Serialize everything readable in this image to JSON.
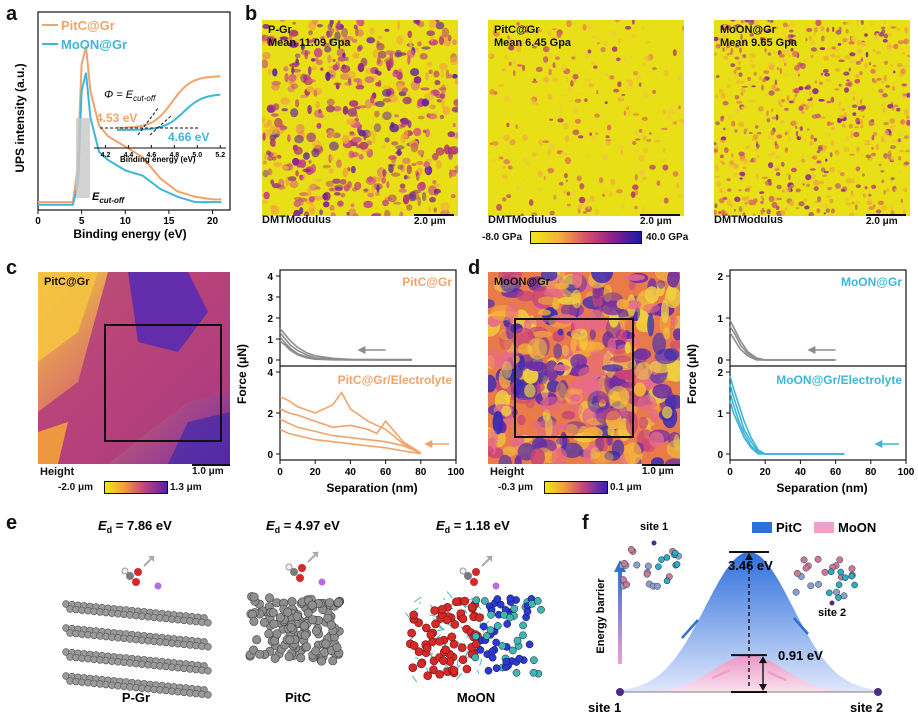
{
  "panel_labels": {
    "a": "a",
    "b": "b",
    "c": "c",
    "d": "d",
    "e": "e",
    "f": "f"
  },
  "colors": {
    "pitc": "#f2a36a",
    "moon": "#3fb6d8",
    "gray": "#888888",
    "map_yellow": "#e8df16",
    "map_purple": "#8a1f8f",
    "barrier_blue": "#2f6fdc",
    "barrier_pink": "#ef9fc8"
  },
  "panel_a": {
    "legend": [
      "PitC@Gr",
      "MoON@Gr"
    ],
    "ylabel": "UPS intensity (a.u.)",
    "xlabel": "Binding energy (eV)",
    "xticks": [
      "0",
      "5",
      "10",
      "15",
      "20"
    ],
    "phi_label": "Φ = E",
    "phi_sub": "cut-off",
    "val_pitc": "4.53 eV",
    "val_moon": "4.66 eV",
    "ecut_label": "E",
    "ecut_sub": "cut-off",
    "inset_xticks": [
      "4.2",
      "4.4",
      "4.6",
      "4.8",
      "5.0",
      "5.2"
    ],
    "inset_xlabel": "Binding energy (eV)"
  },
  "chart_data": [
    {
      "type": "line",
      "title": "",
      "xlabel": "Binding energy (eV)",
      "ylabel": "UPS intensity (a.u.)",
      "xlim": [
        0,
        22
      ],
      "series": [
        {
          "name": "PitC@Gr",
          "x": [
            0,
            3,
            4.0,
            4.5,
            5.0,
            5.5,
            6,
            7,
            8,
            10,
            12,
            14,
            16,
            18,
            20,
            21
          ],
          "y": [
            0.03,
            0.03,
            0.03,
            0.15,
            0.55,
            0.62,
            0.45,
            0.32,
            0.28,
            0.24,
            0.2,
            0.12,
            0.07,
            0.05,
            0.04,
            0.04
          ]
        },
        {
          "name": "MoON@Gr",
          "x": [
            0,
            3,
            4.0,
            4.6,
            5.0,
            5.5,
            6,
            7,
            8,
            10,
            12,
            14,
            16,
            18,
            20,
            21
          ],
          "y": [
            0.02,
            0.02,
            0.02,
            0.1,
            0.45,
            0.52,
            0.35,
            0.22,
            0.19,
            0.15,
            0.13,
            0.08,
            0.05,
            0.03,
            0.03,
            0.03
          ]
        }
      ]
    },
    {
      "type": "line",
      "title": "PitC@Gr",
      "xlabel": "Separation (nm)",
      "ylabel": "Force (μN)",
      "xlim": [
        0,
        100
      ],
      "top": {
        "label": "PitC@Gr",
        "ylim": [
          0,
          4
        ],
        "yticks": [
          0,
          1,
          2,
          3,
          4
        ],
        "series": [
          {
            "x": [
              0,
              3,
              6,
              10,
              15,
              20,
              30,
              40,
              60,
              75
            ],
            "y": [
              1.5,
              1.2,
              0.9,
              0.6,
              0.35,
              0.2,
              0.08,
              0.03,
              0.02,
              0.02
            ]
          },
          {
            "x": [
              0,
              3,
              6,
              10,
              15,
              20,
              30,
              40,
              60,
              75
            ],
            "y": [
              1.3,
              1.0,
              0.7,
              0.45,
              0.25,
              0.1,
              0.05,
              0.02,
              0.01,
              0.01
            ]
          },
          {
            "x": [
              0,
              3,
              6,
              10,
              15,
              20,
              30,
              40,
              60,
              75
            ],
            "y": [
              1.1,
              0.8,
              0.55,
              0.3,
              0.15,
              0.06,
              0.02,
              0.01,
              0.0,
              0.0
            ]
          },
          {
            "x": [
              0,
              3,
              6,
              10,
              15,
              20,
              30,
              40,
              60,
              75
            ],
            "y": [
              0.9,
              0.7,
              0.45,
              0.25,
              0.1,
              0.04,
              0.01,
              0.0,
              0.0,
              0.0
            ]
          }
        ]
      },
      "bottom": {
        "label": "PitC@Gr/Electrolyte",
        "ylim": [
          0,
          4
        ],
        "yticks": [
          0,
          2,
          4
        ],
        "series": [
          {
            "x": [
              0,
              5,
              10,
              20,
              30,
              35,
              40,
              50,
              60,
              70,
              80
            ],
            "y": [
              2.8,
              2.6,
              2.3,
              2.0,
              2.4,
              3.0,
              2.2,
              1.6,
              1.2,
              0.5,
              0.05
            ]
          },
          {
            "x": [
              0,
              5,
              10,
              20,
              30,
              40,
              50,
              55,
              60,
              70,
              80
            ],
            "y": [
              2.2,
              2.0,
              1.9,
              1.6,
              1.3,
              1.4,
              1.2,
              1.0,
              1.6,
              0.6,
              0.05
            ]
          },
          {
            "x": [
              0,
              5,
              10,
              20,
              30,
              40,
              50,
              60,
              70,
              80
            ],
            "y": [
              1.7,
              1.5,
              1.3,
              1.1,
              0.9,
              0.8,
              0.7,
              0.6,
              0.4,
              0.05
            ]
          },
          {
            "x": [
              0,
              5,
              10,
              20,
              30,
              40,
              50,
              60,
              70,
              80
            ],
            "y": [
              1.2,
              1.0,
              0.9,
              0.7,
              0.6,
              0.5,
              0.4,
              0.3,
              0.15,
              0.02
            ]
          }
        ]
      },
      "arrow_label": ""
    },
    {
      "type": "line",
      "title": "MoON@Gr",
      "xlabel": "Separation (nm)",
      "ylabel": "Force (μN)",
      "xlim": [
        0,
        100
      ],
      "top": {
        "label": "MoON@Gr",
        "ylim": [
          0,
          2
        ],
        "yticks": [
          0,
          1,
          2
        ],
        "series": [
          {
            "x": [
              0,
              3,
              6,
              10,
              15,
              20,
              30,
              45,
              60
            ],
            "y": [
              0.95,
              0.7,
              0.45,
              0.2,
              0.05,
              0.0,
              0.0,
              0.0,
              0.0
            ]
          },
          {
            "x": [
              0,
              3,
              6,
              10,
              15,
              20,
              30,
              45,
              60
            ],
            "y": [
              0.8,
              0.6,
              0.35,
              0.15,
              0.02,
              0.0,
              0.0,
              0.0,
              0.0
            ]
          },
          {
            "x": [
              0,
              3,
              6,
              10,
              15,
              20,
              30,
              45,
              60
            ],
            "y": [
              0.65,
              0.45,
              0.25,
              0.1,
              0.0,
              0.0,
              0.0,
              0.0,
              0.0
            ]
          }
        ]
      },
      "bottom": {
        "label": "MoON@Gr/Electrolyte",
        "ylim": [
          0,
          2
        ],
        "yticks": [
          0,
          1,
          2
        ],
        "series": [
          {
            "x": [
              0,
              2,
              5,
              8,
              12,
              16,
              20,
              40,
              65
            ],
            "y": [
              1.9,
              1.6,
              1.2,
              0.8,
              0.4,
              0.1,
              0.0,
              0.0,
              0.0
            ]
          },
          {
            "x": [
              0,
              2,
              5,
              8,
              12,
              16,
              20,
              40,
              65
            ],
            "y": [
              1.7,
              1.4,
              1.0,
              0.6,
              0.3,
              0.05,
              0.0,
              0.0,
              0.0
            ]
          },
          {
            "x": [
              0,
              2,
              5,
              8,
              12,
              16,
              20,
              40,
              65
            ],
            "y": [
              1.5,
              1.2,
              0.8,
              0.5,
              0.2,
              0.02,
              0.0,
              0.0,
              0.0
            ]
          },
          {
            "x": [
              0,
              2,
              5,
              8,
              12,
              16,
              20,
              40,
              65
            ],
            "y": [
              1.3,
              1.0,
              0.7,
              0.4,
              0.15,
              0.0,
              0.0,
              0.0,
              0.0
            ]
          }
        ]
      }
    },
    {
      "type": "area",
      "title": "Energy barrier",
      "ylabel": "Energy barrier",
      "xlabel": "",
      "categories": [
        "site 1",
        "site 2"
      ],
      "series": [
        {
          "name": "PitC",
          "peak": 3.46
        },
        {
          "name": "MoON",
          "peak": 0.91
        }
      ]
    }
  ],
  "panel_b": {
    "maps": [
      {
        "name": "P-Gr",
        "mean": "Mean 11.09 Gpa",
        "caption": "DMTModulus",
        "scale": "2.0 μm"
      },
      {
        "name": "PitC@Gr",
        "mean": "Mean 6.45 Gpa",
        "caption": "DMTModulus",
        "scale": "2.0 μm"
      },
      {
        "name": "MoON@Gr",
        "mean": "Mean 9.65 Gpa",
        "caption": "DMTModulus",
        "scale": "2.0 μm"
      }
    ],
    "colorbar_min": "-8.0 GPa",
    "colorbar_max": "40.0 GPa"
  },
  "panel_c": {
    "map_name": "PitC@Gr",
    "caption": "Height",
    "scale": "1.0 μm",
    "cb_min": "-2.0 μm",
    "cb_max": "1.3 μm",
    "top_label": "PitC@Gr",
    "bottom_label": "PitC@Gr/Electrolyte",
    "ylabel": "Force (μN)",
    "xlabel": "Separation (nm)",
    "top_yticks": [
      "0",
      "1",
      "2",
      "3",
      "4"
    ],
    "bottom_yticks": [
      "0",
      "2",
      "4"
    ],
    "xticks": [
      "0",
      "20",
      "40",
      "60",
      "80",
      "100"
    ]
  },
  "panel_d": {
    "map_name": "MoON@Gr",
    "caption": "Height",
    "scale": "1.0 μm",
    "cb_min": "-0.3 μm",
    "cb_max": "0.1 μm",
    "top_label": "MoON@Gr",
    "bottom_label": "MoON@Gr/Electrolyte",
    "ylabel": "Force (μN)",
    "xlabel": "Separation (nm)",
    "top_yticks": [
      "0",
      "1",
      "2"
    ],
    "bottom_yticks": [
      "0",
      "1",
      "2"
    ],
    "xticks": [
      "0",
      "20",
      "40",
      "60",
      "80",
      "100"
    ]
  },
  "panel_e": {
    "items": [
      {
        "ed": "E",
        "sub": "d",
        "value": " = 7.86 eV",
        "name": "P-Gr"
      },
      {
        "ed": "E",
        "sub": "d",
        "value": " = 4.97 eV",
        "name": "PitC"
      },
      {
        "ed": "E",
        "sub": "d",
        "value": " = 1.18 eV",
        "name": "MoON"
      }
    ]
  },
  "panel_f": {
    "legend_pitc": "PitC",
    "legend_moon": "MoON",
    "ylabel": "Energy barrier",
    "site1_top": "site 1",
    "site2_mid": "site 2",
    "site1_bottom": "site 1",
    "site2_bottom": "site 2",
    "val_pitc": "3.46 eV",
    "val_moon": "0.91 eV"
  }
}
